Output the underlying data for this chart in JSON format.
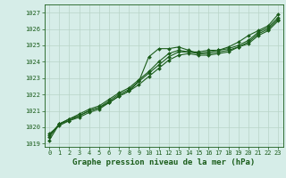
{
  "xlabel": "Graphe pression niveau de la mer (hPa)",
  "xlim": [
    -0.5,
    23.5
  ],
  "ylim": [
    1018.8,
    1027.5
  ],
  "yticks": [
    1019,
    1020,
    1021,
    1022,
    1023,
    1024,
    1025,
    1026,
    1027
  ],
  "xticks": [
    0,
    1,
    2,
    3,
    4,
    5,
    6,
    7,
    8,
    9,
    10,
    11,
    12,
    13,
    14,
    15,
    16,
    17,
    18,
    19,
    20,
    21,
    22,
    23
  ],
  "bg_color": "#d6ede8",
  "grid_color": "#b8d4c8",
  "line_colors": [
    "#1a5c1a",
    "#1a5c1a",
    "#1a5c1a",
    "#1a5c1a"
  ],
  "series": [
    [
      1019.2,
      1020.2,
      1020.4,
      1020.7,
      1021.0,
      1021.2,
      1021.5,
      1021.9,
      1022.2,
      1022.8,
      1024.3,
      1024.8,
      1024.8,
      1024.9,
      1024.7,
      1024.5,
      1024.6,
      1024.7,
      1024.9,
      1025.2,
      1025.6,
      1025.9,
      1026.2,
      1026.9
    ],
    [
      1019.4,
      1020.2,
      1020.5,
      1020.8,
      1021.1,
      1021.3,
      1021.7,
      1022.1,
      1022.4,
      1022.9,
      1023.4,
      1024.0,
      1024.5,
      1024.7,
      1024.6,
      1024.6,
      1024.7,
      1024.7,
      1024.8,
      1025.0,
      1025.3,
      1025.8,
      1026.1,
      1026.7
    ],
    [
      1019.5,
      1020.2,
      1020.5,
      1020.7,
      1021.0,
      1021.2,
      1021.6,
      1022.0,
      1022.3,
      1022.8,
      1023.3,
      1023.8,
      1024.3,
      1024.6,
      1024.6,
      1024.5,
      1024.5,
      1024.6,
      1024.7,
      1024.9,
      1025.2,
      1025.7,
      1026.0,
      1026.6
    ],
    [
      1019.6,
      1020.1,
      1020.4,
      1020.6,
      1020.9,
      1021.1,
      1021.5,
      1021.9,
      1022.2,
      1022.6,
      1023.1,
      1023.6,
      1024.1,
      1024.4,
      1024.5,
      1024.4,
      1024.4,
      1024.5,
      1024.6,
      1024.9,
      1025.1,
      1025.6,
      1025.9,
      1026.5
    ]
  ],
  "marker": "D",
  "markersize": 2.0,
  "linewidth": 0.8,
  "label_fontsize": 6.5,
  "tick_fontsize": 5.0
}
